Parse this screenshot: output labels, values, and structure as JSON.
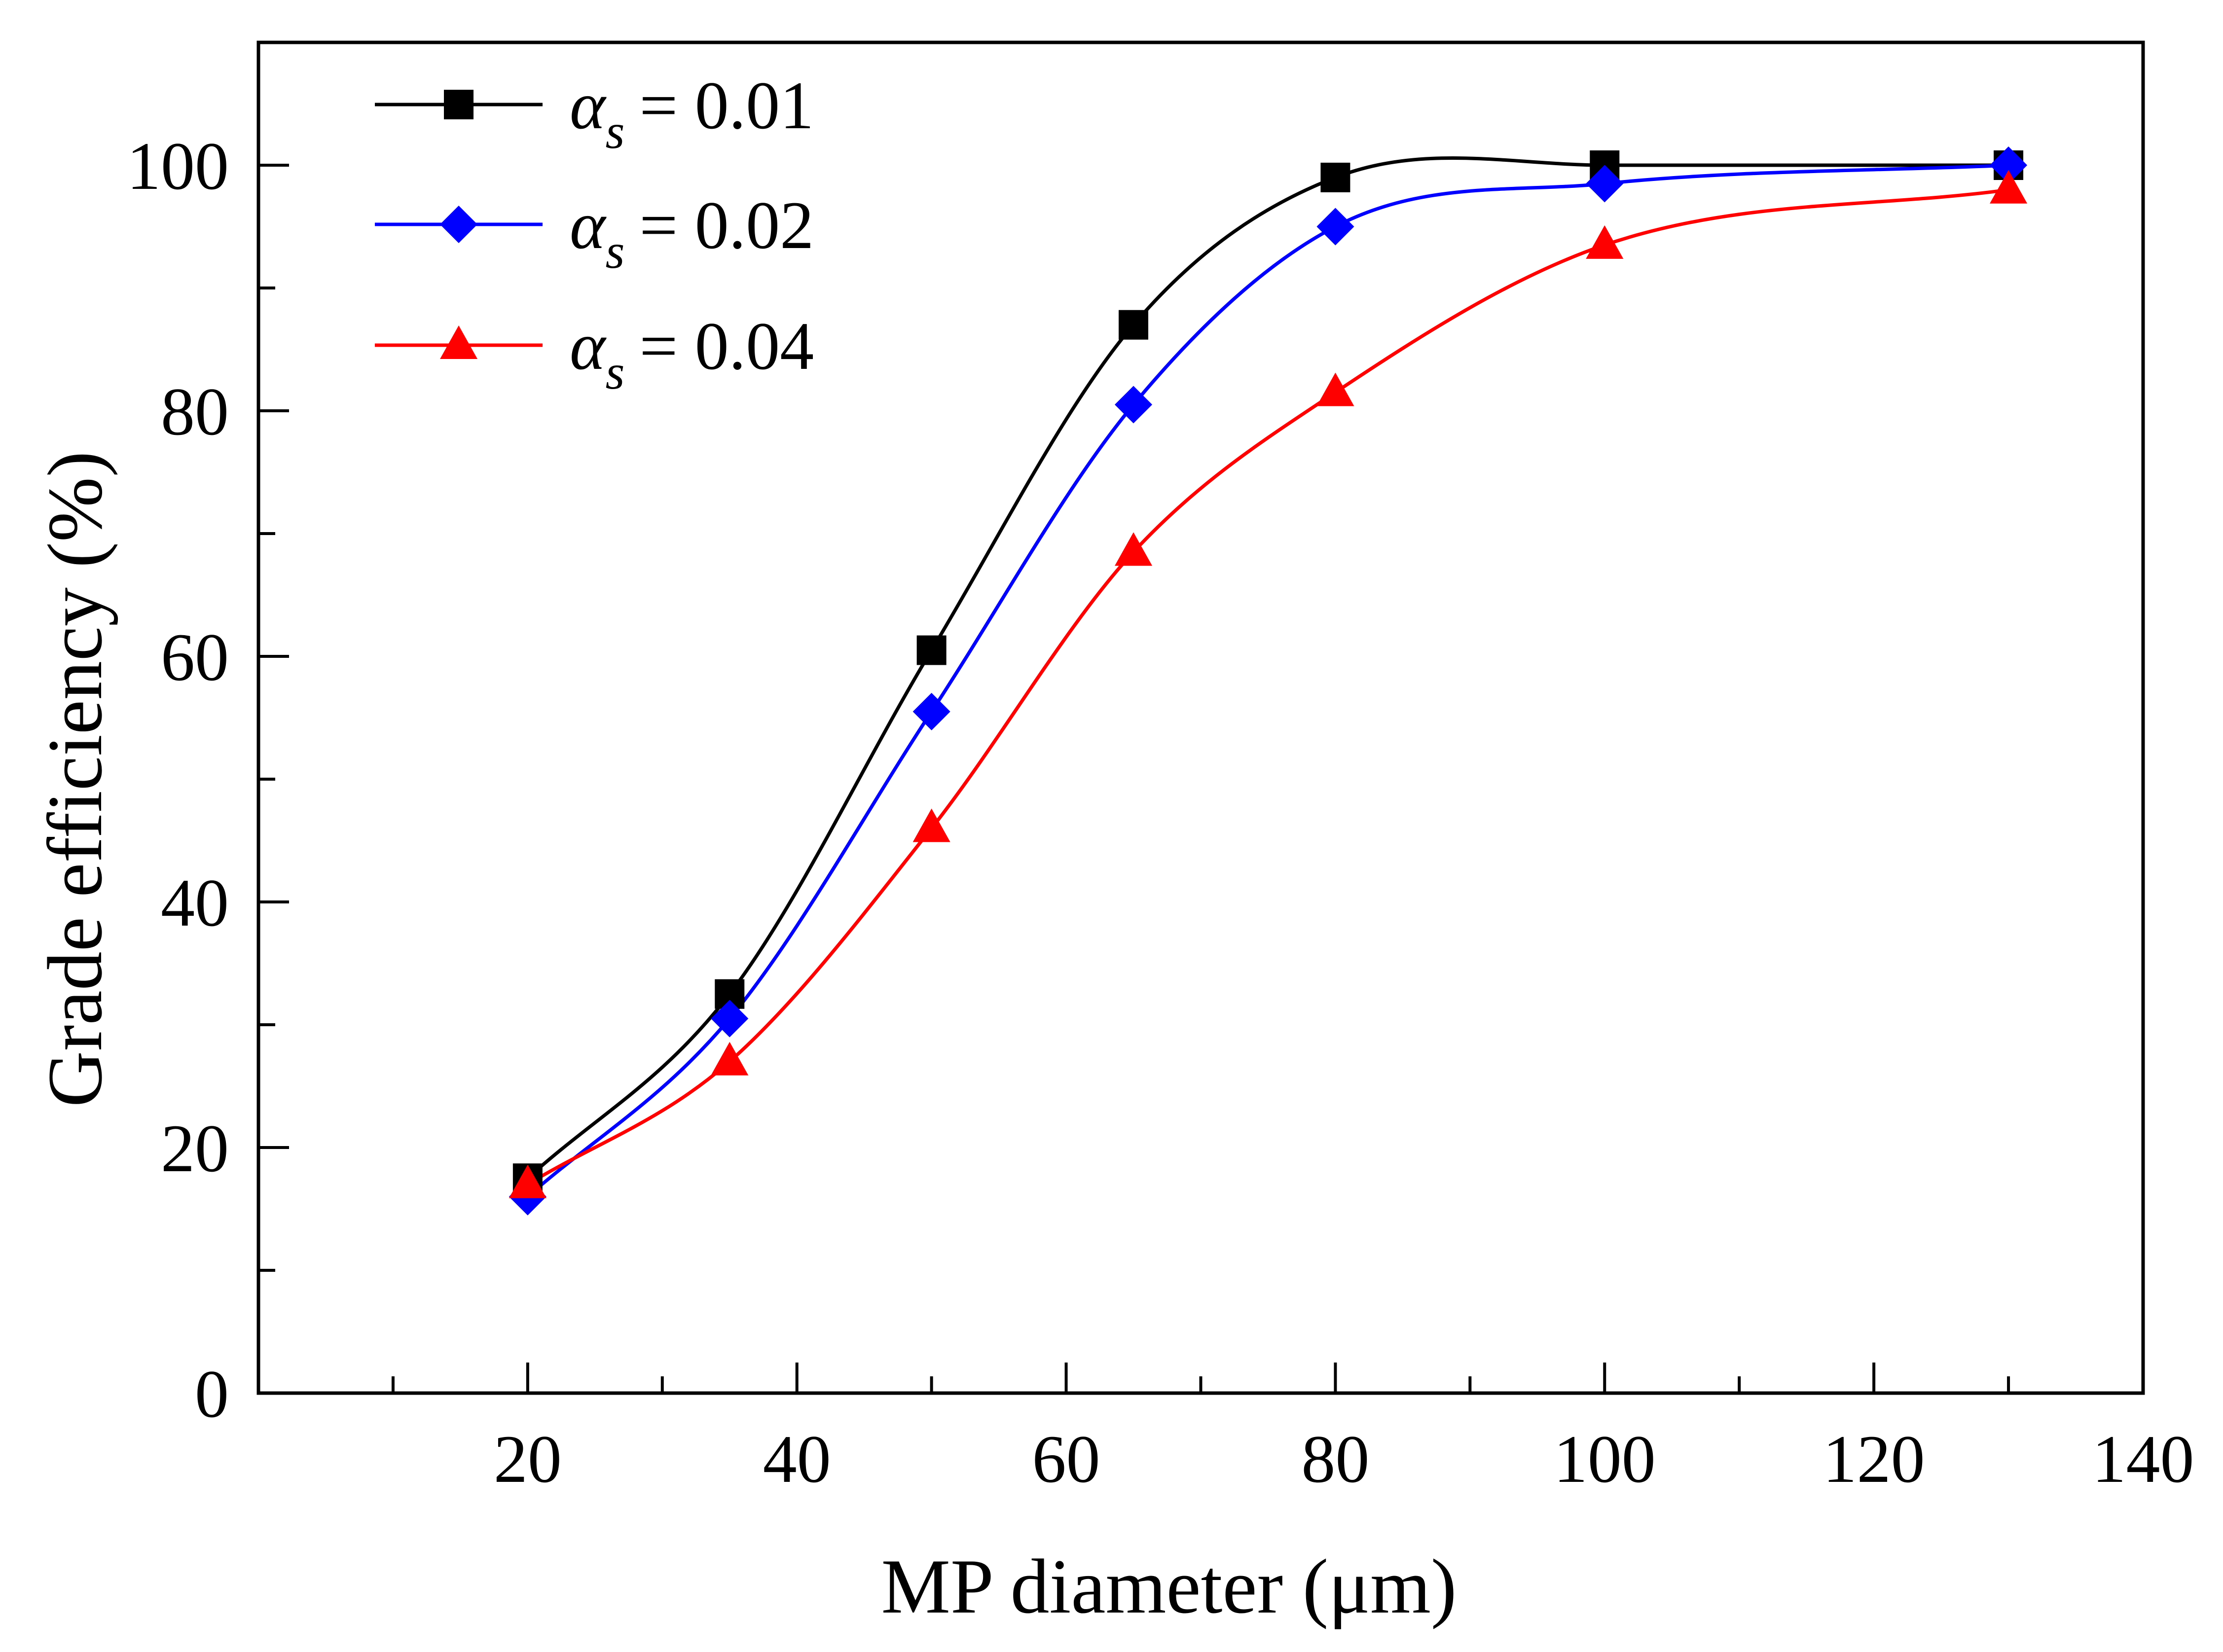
{
  "chart_data": {
    "type": "line",
    "xlabel": "MP diameter (μm)",
    "ylabel": "Grade efficiency (%)",
    "xlim": [
      0,
      140
    ],
    "ylim": [
      0,
      110
    ],
    "x_ticks": [
      20,
      40,
      60,
      80,
      100,
      120,
      140
    ],
    "x_tick_labels": [
      "20",
      "40",
      "60",
      "80",
      "100",
      "120",
      "140"
    ],
    "y_ticks": [
      0,
      20,
      40,
      60,
      80,
      100
    ],
    "y_tick_labels": [
      "0",
      "20",
      "40",
      "60",
      "80",
      "100"
    ],
    "x_minor_step": 10,
    "y_minor_step": 10,
    "grid": false,
    "legend_position": "top-left",
    "x": [
      20,
      35,
      50,
      65,
      80,
      100,
      130
    ],
    "series": [
      {
        "legend_symbol": "α",
        "legend_subscript": "s",
        "legend_value": "= 0.01",
        "color": "#000000",
        "marker": "square",
        "values": [
          17.5,
          32.5,
          60.5,
          87,
          99,
          100,
          100
        ]
      },
      {
        "legend_symbol": "α",
        "legend_subscript": "s",
        "legend_value": "= 0.02",
        "color": "#0000ff",
        "marker": "diamond",
        "values": [
          16,
          30.5,
          55.5,
          80.5,
          95,
          98.5,
          100
        ]
      },
      {
        "legend_symbol": "α",
        "legend_subscript": "s",
        "legend_value": "= 0.04",
        "color": "#ff0000",
        "marker": "triangle",
        "values": [
          17,
          27,
          46,
          68.5,
          81.5,
          93.5,
          98
        ]
      }
    ]
  }
}
